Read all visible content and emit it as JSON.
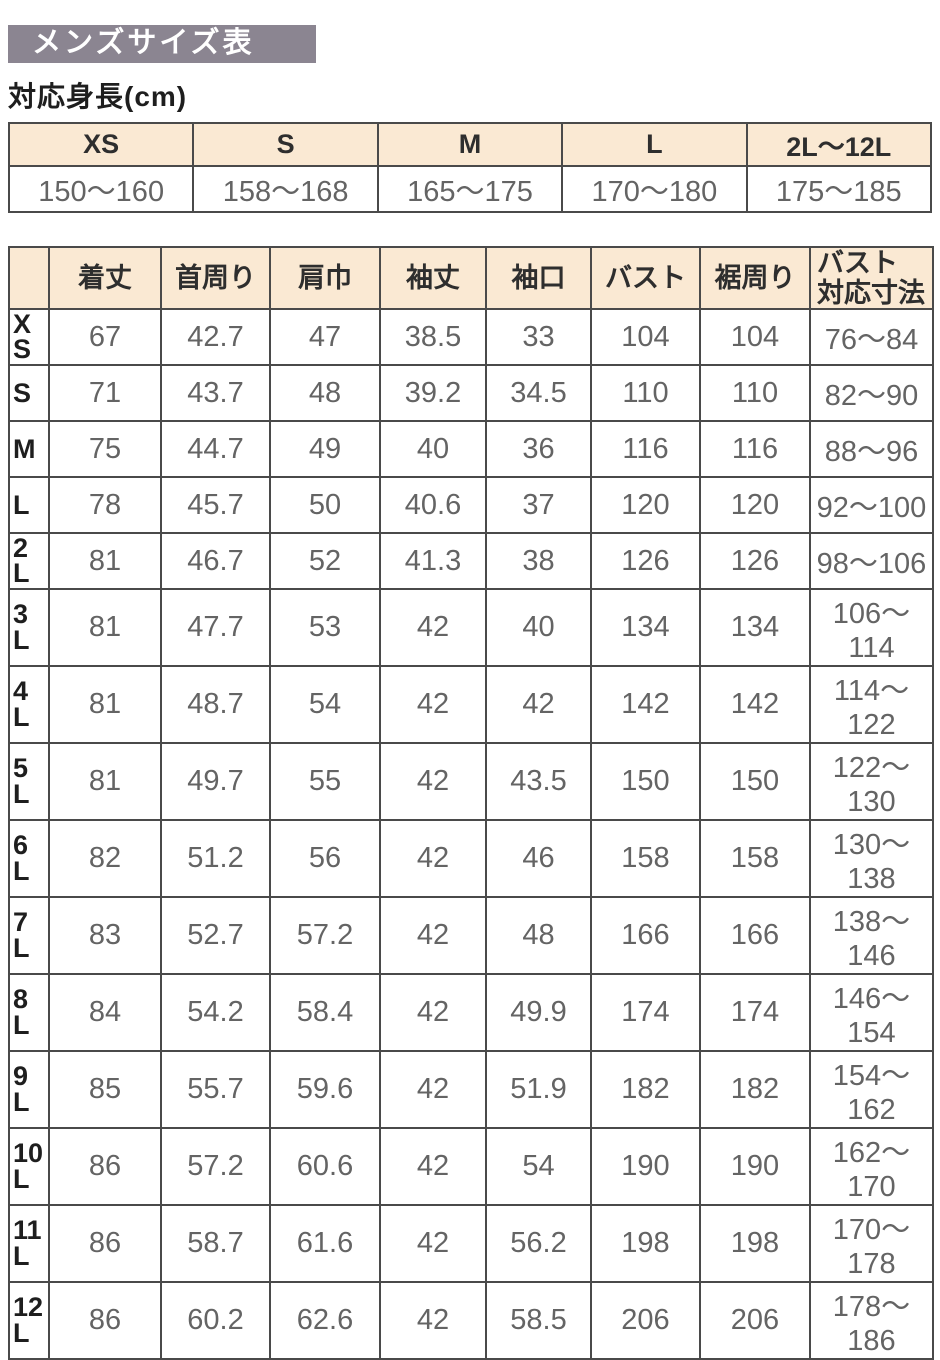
{
  "title": "メンズサイズ表",
  "height_section": {
    "title": "対応身長(cm)",
    "columns": [
      "XS",
      "S",
      "M",
      "L",
      "2L〜12L"
    ],
    "values": [
      "150〜160",
      "158〜168",
      "165〜175",
      "170〜180",
      "175〜185"
    ]
  },
  "size_table": {
    "columns": [
      "着丈",
      "首周り",
      "肩巾",
      "袖丈",
      "袖口",
      "バスト",
      "裾周り",
      "バスト\n対応寸法"
    ],
    "rows": [
      {
        "label": "X\nS",
        "values": [
          "67",
          "42.7",
          "47",
          "38.5",
          "33",
          "104",
          "104",
          "76〜84"
        ]
      },
      {
        "label": "S",
        "values": [
          "71",
          "43.7",
          "48",
          "39.2",
          "34.5",
          "110",
          "110",
          "82〜90"
        ]
      },
      {
        "label": "M",
        "values": [
          "75",
          "44.7",
          "49",
          "40",
          "36",
          "116",
          "116",
          "88〜96"
        ]
      },
      {
        "label": "L",
        "values": [
          "78",
          "45.7",
          "50",
          "40.6",
          "37",
          "120",
          "120",
          "92〜100"
        ]
      },
      {
        "label": "2\nL",
        "values": [
          "81",
          "46.7",
          "52",
          "41.3",
          "38",
          "126",
          "126",
          "98〜106"
        ]
      },
      {
        "label": "3\nL",
        "values": [
          "81",
          "47.7",
          "53",
          "42",
          "40",
          "134",
          "134",
          "106〜114"
        ]
      },
      {
        "label": "4\nL",
        "values": [
          "81",
          "48.7",
          "54",
          "42",
          "42",
          "142",
          "142",
          "114〜122"
        ]
      },
      {
        "label": "5\nL",
        "values": [
          "81",
          "49.7",
          "55",
          "42",
          "43.5",
          "150",
          "150",
          "122〜130"
        ]
      },
      {
        "label": "6\nL",
        "values": [
          "82",
          "51.2",
          "56",
          "42",
          "46",
          "158",
          "158",
          "130〜138"
        ]
      },
      {
        "label": "7\nL",
        "values": [
          "83",
          "52.7",
          "57.2",
          "42",
          "48",
          "166",
          "166",
          "138〜146"
        ]
      },
      {
        "label": "8\nL",
        "values": [
          "84",
          "54.2",
          "58.4",
          "42",
          "49.9",
          "174",
          "174",
          "146〜154"
        ]
      },
      {
        "label": "9\nL",
        "values": [
          "85",
          "55.7",
          "59.6",
          "42",
          "51.9",
          "182",
          "182",
          "154〜162"
        ]
      },
      {
        "label": "10\nL",
        "values": [
          "86",
          "57.2",
          "60.6",
          "42",
          "54",
          "190",
          "190",
          "162〜170"
        ]
      },
      {
        "label": "11\nL",
        "values": [
          "86",
          "58.7",
          "61.6",
          "42",
          "56.2",
          "198",
          "198",
          "170〜178"
        ]
      },
      {
        "label": "12\nL",
        "values": [
          "86",
          "60.2",
          "62.6",
          "42",
          "58.5",
          "206",
          "206",
          "178〜186"
        ]
      }
    ]
  },
  "colors": {
    "title_bar_bg": "#8b8591",
    "title_text": "#ffffff",
    "header_cell_bg": "#fae9d3",
    "border": "#4a4a4a",
    "value_text": "#646464",
    "label_text": "#1e1e1e"
  }
}
